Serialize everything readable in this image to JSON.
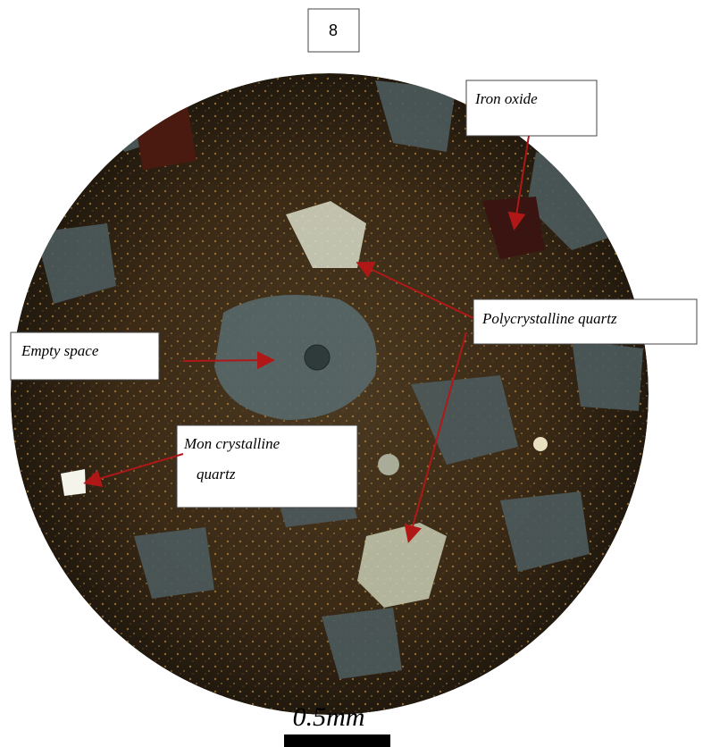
{
  "panel_label": "8",
  "labels": [
    {
      "lines": [
        "Iron oxide"
      ]
    },
    {
      "lines": [
        "Polycrystalline  quartz"
      ]
    },
    {
      "lines": [
        "Empty space"
      ]
    },
    {
      "lines": [
        "Mon crystalline",
        "quartz"
      ]
    }
  ],
  "scale_bar": {
    "label": "0.5mm"
  }
}
